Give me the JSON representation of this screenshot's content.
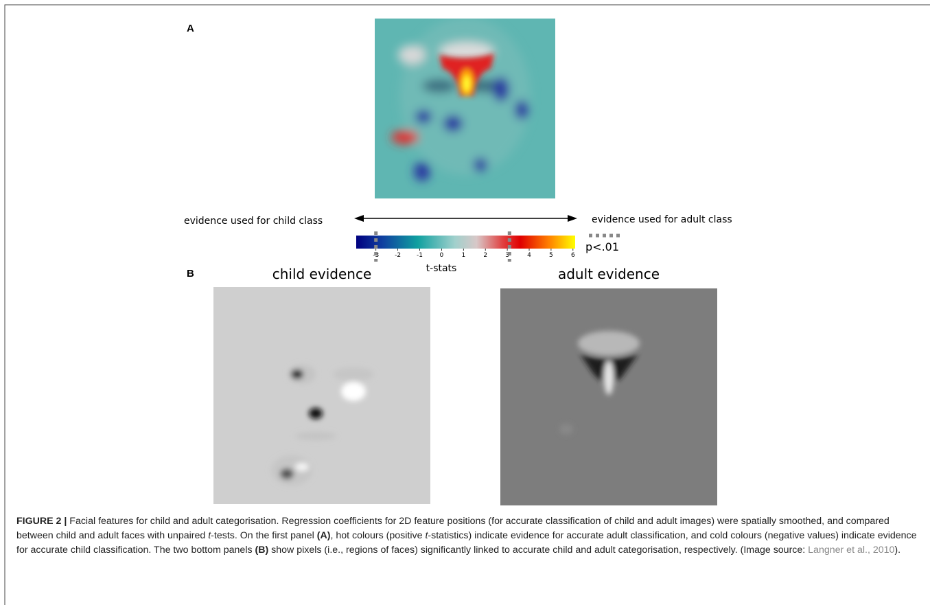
{
  "panel_a": {
    "label": "A",
    "left_text": "evidence used for child class",
    "right_text": "evidence used for adult class",
    "colorbar": {
      "lim": [
        -3.9,
        6.1
      ],
      "ticks": [
        -3,
        -2,
        -1,
        0,
        1,
        2,
        3,
        4,
        5,
        6
      ],
      "label": "t-stats",
      "threshold_marks": [
        -3,
        3.1
      ],
      "threshold_label": "p<.01"
    }
  },
  "panel_b": {
    "label": "B",
    "left_title": "child evidence",
    "right_title": "adult evidence"
  },
  "caption": {
    "label": "FIGURE 2 |",
    "runs": [
      " Facial features for child and adult categorisation. Regression coefficients for 2D feature positions (for accurate classification of child and adult images) were spatially smoothed, and compared between child and adult faces with unpaired ",
      "t",
      "-tests. On the first panel ",
      "(A)",
      ", hot colours (positive ",
      "t",
      "-statistics) indicate evidence for accurate adult classification, and cold colours (negative values) indicate evidence for accurate child classification. The two bottom panels ",
      "(B)",
      " show pixels (i.e., regions of faces) significantly linked to accurate child and adult categorisation, respectively. (Image source: ",
      "Langner et al., 2010",
      ")."
    ]
  }
}
